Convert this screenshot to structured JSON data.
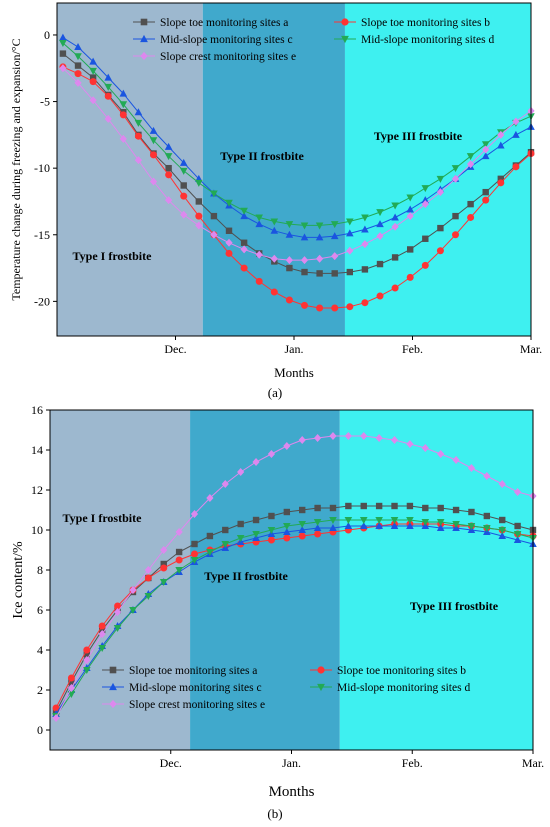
{
  "chart_data": [
    {
      "type": "line",
      "panel_label": "(a)",
      "xlabel": "Months",
      "ylabel": "Temperature change during freezing and expansion/°C",
      "x_ticks": [
        "Dec.",
        "Jan.",
        "Feb.",
        "Mar."
      ],
      "ylim": [
        -22.6,
        2.4
      ],
      "y_ticks": [
        0,
        -5,
        -10,
        -15,
        -20
      ],
      "grid": false,
      "legend_position": "top",
      "regions": [
        {
          "label": "Type I frostbite",
          "start": 0,
          "end": 1.23,
          "color": "#9db8cf"
        },
        {
          "label": "Type II frostbite",
          "start": 1.23,
          "end": 2.43,
          "color": "#40a9cc"
        },
        {
          "label": "Type III frostbite",
          "start": 2.43,
          "end": 4,
          "color": "#3ef0f0"
        }
      ],
      "series": [
        {
          "name": "Slope toe monitoring sites a",
          "color": "#505050",
          "marker": "square",
          "values": [
            -1.4,
            -2.3,
            -3.2,
            -4.5,
            -5.8,
            -7.5,
            -8.9,
            -10.0,
            -11.3,
            -12.5,
            -13.6,
            -14.7,
            -15.6,
            -16.4,
            -17.0,
            -17.5,
            -17.8,
            -17.9,
            -17.9,
            -17.8,
            -17.6,
            -17.2,
            -16.7,
            -16.1,
            -15.3,
            -14.5,
            -13.6,
            -12.7,
            -11.8,
            -10.8,
            -9.8,
            -8.8
          ]
        },
        {
          "name": "Slope toe monitoring sites b",
          "color": "#ff3333",
          "marker": "circle",
          "values": [
            -2.4,
            -2.9,
            -3.5,
            -4.6,
            -6.0,
            -7.6,
            -9.0,
            -10.5,
            -12.1,
            -13.6,
            -15.0,
            -16.4,
            -17.5,
            -18.5,
            -19.3,
            -19.9,
            -20.3,
            -20.5,
            -20.5,
            -20.4,
            -20.1,
            -19.6,
            -19.0,
            -18.2,
            -17.3,
            -16.2,
            -15.0,
            -13.7,
            -12.4,
            -11.1,
            -9.9,
            -8.9
          ]
        },
        {
          "name": "Mid-slope monitoring sites c",
          "color": "#1a55e0",
          "marker": "triangle-up",
          "values": [
            -0.2,
            -0.9,
            -2.0,
            -3.2,
            -4.4,
            -5.8,
            -7.2,
            -8.4,
            -9.6,
            -10.8,
            -11.9,
            -12.8,
            -13.6,
            -14.2,
            -14.7,
            -15.0,
            -15.2,
            -15.2,
            -15.1,
            -14.9,
            -14.6,
            -14.2,
            -13.7,
            -13.1,
            -12.4,
            -11.6,
            -10.8,
            -9.9,
            -9.1,
            -8.3,
            -7.5,
            -6.9
          ]
        },
        {
          "name": "Mid-slope monitoring sites d",
          "color": "#22aa55",
          "marker": "triangle-down",
          "values": [
            -0.6,
            -1.6,
            -2.7,
            -3.9,
            -5.2,
            -6.6,
            -7.9,
            -9.1,
            -10.2,
            -11.1,
            -11.9,
            -12.6,
            -13.2,
            -13.7,
            -14.0,
            -14.2,
            -14.3,
            -14.3,
            -14.2,
            -14.0,
            -13.7,
            -13.3,
            -12.8,
            -12.2,
            -11.5,
            -10.8,
            -10.0,
            -9.1,
            -8.2,
            -7.3,
            -6.6,
            -6.1
          ]
        },
        {
          "name": "Slope crest monitoring sites e",
          "color": "#dd88ee",
          "marker": "diamond",
          "values": [
            -2.5,
            -3.6,
            -4.9,
            -6.3,
            -7.8,
            -9.4,
            -11.0,
            -12.4,
            -13.5,
            -14.3,
            -15.0,
            -15.6,
            -16.1,
            -16.5,
            -16.8,
            -16.9,
            -16.9,
            -16.8,
            -16.6,
            -16.2,
            -15.7,
            -15.1,
            -14.4,
            -13.6,
            -12.7,
            -11.8,
            -10.8,
            -9.7,
            -8.6,
            -7.5,
            -6.5,
            -5.7
          ]
        }
      ]
    },
    {
      "type": "line",
      "panel_label": "(b)",
      "xlabel": "Months",
      "ylabel": "Ice content/%",
      "x_ticks": [
        "Dec.",
        "Jan.",
        "Feb.",
        "Mar."
      ],
      "ylim": [
        -1,
        16
      ],
      "y_ticks": [
        0,
        2,
        4,
        6,
        8,
        10,
        12,
        14,
        16
      ],
      "grid": false,
      "legend_position": "bottom",
      "regions": [
        {
          "label": "Type I frostbite",
          "start": 0,
          "end": 1.16,
          "color": "#9db8cf"
        },
        {
          "label": "Type II frostbite",
          "start": 1.16,
          "end": 2.4,
          "color": "#40a9cc"
        },
        {
          "label": "Type III frostbite",
          "start": 2.4,
          "end": 4,
          "color": "#3ef0f0"
        }
      ],
      "series": [
        {
          "name": "Slope toe monitoring sites a",
          "color": "#505050",
          "marker": "square",
          "values": [
            0.9,
            2.4,
            3.8,
            5.0,
            6.0,
            6.9,
            7.6,
            8.3,
            8.9,
            9.3,
            9.7,
            10.0,
            10.3,
            10.5,
            10.7,
            10.9,
            11.0,
            11.1,
            11.1,
            11.2,
            11.2,
            11.2,
            11.2,
            11.2,
            11.1,
            11.1,
            11.0,
            10.9,
            10.7,
            10.5,
            10.2,
            10.0
          ]
        },
        {
          "name": "Slope toe monitoring sites b",
          "color": "#ff3333",
          "marker": "circle",
          "values": [
            1.1,
            2.6,
            4.0,
            5.2,
            6.2,
            7.0,
            7.6,
            8.1,
            8.5,
            8.8,
            9.0,
            9.2,
            9.3,
            9.4,
            9.5,
            9.6,
            9.7,
            9.8,
            9.9,
            10.0,
            10.1,
            10.2,
            10.3,
            10.3,
            10.3,
            10.3,
            10.2,
            10.2,
            10.1,
            10.0,
            9.8,
            9.7
          ]
        },
        {
          "name": "Mid-slope monitoring sites c",
          "color": "#1a55e0",
          "marker": "triangle-up",
          "values": [
            0.8,
            2.0,
            3.1,
            4.2,
            5.2,
            6.0,
            6.8,
            7.4,
            7.9,
            8.4,
            8.8,
            9.1,
            9.4,
            9.6,
            9.8,
            9.9,
            10.0,
            10.1,
            10.1,
            10.2,
            10.2,
            10.2,
            10.2,
            10.2,
            10.2,
            10.1,
            10.1,
            10.0,
            9.9,
            9.7,
            9.5,
            9.3
          ]
        },
        {
          "name": "Mid-slope monitoring sites d",
          "color": "#22aa55",
          "marker": "triangle-down",
          "values": [
            0.7,
            1.8,
            3.0,
            4.1,
            5.1,
            6.0,
            6.7,
            7.4,
            8.0,
            8.5,
            8.9,
            9.3,
            9.6,
            9.8,
            10.0,
            10.2,
            10.3,
            10.4,
            10.5,
            10.5,
            10.5,
            10.5,
            10.5,
            10.5,
            10.4,
            10.4,
            10.3,
            10.2,
            10.1,
            10.0,
            9.8,
            9.6
          ]
        },
        {
          "name": "Slope crest monitoring sites e",
          "color": "#dd88ee",
          "marker": "diamond",
          "values": [
            0.6,
            2.1,
            3.5,
            4.8,
            5.9,
            7.0,
            8.0,
            9.0,
            9.9,
            10.8,
            11.6,
            12.3,
            12.9,
            13.4,
            13.8,
            14.2,
            14.5,
            14.6,
            14.7,
            14.7,
            14.7,
            14.6,
            14.5,
            14.3,
            14.1,
            13.8,
            13.5,
            13.1,
            12.7,
            12.3,
            11.9,
            11.7
          ]
        }
      ]
    }
  ]
}
